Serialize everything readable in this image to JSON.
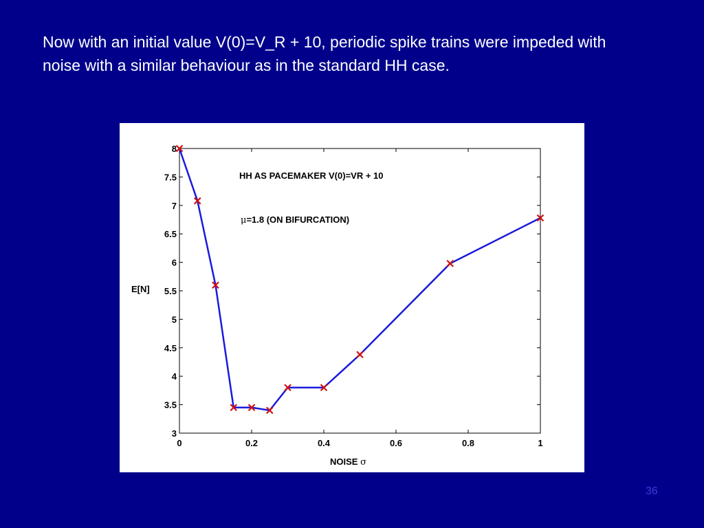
{
  "slide": {
    "body_text": "Now with an initial value V(0)=V_R + 10, periodic spike trains were impeded with noise with a similar behaviour as in the standard HH case.",
    "page_number": "36"
  },
  "colors": {
    "background": "#00008b",
    "text": "#ffffff",
    "line": "#1a1adb",
    "marker": "#d01010",
    "page_number": "#3b3bdc"
  },
  "chart_data": {
    "type": "line",
    "title": "HH AS PACEMAKER V(0)=VR + 10",
    "annotation_symbol": "μ",
    "annotation_text": "=1.8 (ON BIFURCATION)",
    "xlabel_text": "NOISE ",
    "xlabel_symbol": "σ",
    "ylabel": "E[N]",
    "xlim": [
      0,
      1
    ],
    "ylim": [
      3,
      8
    ],
    "xticks": [
      0,
      0.2,
      0.4,
      0.6,
      0.8,
      1
    ],
    "xtick_labels": [
      "0",
      "0.2",
      "0.4",
      "0.6",
      "0.8",
      "1"
    ],
    "yticks": [
      3,
      3.5,
      4,
      4.5,
      5,
      5.5,
      6,
      6.5,
      7,
      7.5,
      8
    ],
    "ytick_labels": [
      "3",
      "3.5",
      "4",
      "4.5",
      "5",
      "5.5",
      "6",
      "6.5",
      "7",
      "7.5",
      "8"
    ],
    "grid": false,
    "marker": "x",
    "x": [
      0,
      0.05,
      0.1,
      0.15,
      0.2,
      0.25,
      0.3,
      0.4,
      0.5,
      0.75,
      1
    ],
    "y": [
      8.0,
      7.08,
      5.6,
      3.45,
      3.45,
      3.4,
      3.8,
      3.8,
      4.38,
      5.98,
      6.78
    ]
  }
}
